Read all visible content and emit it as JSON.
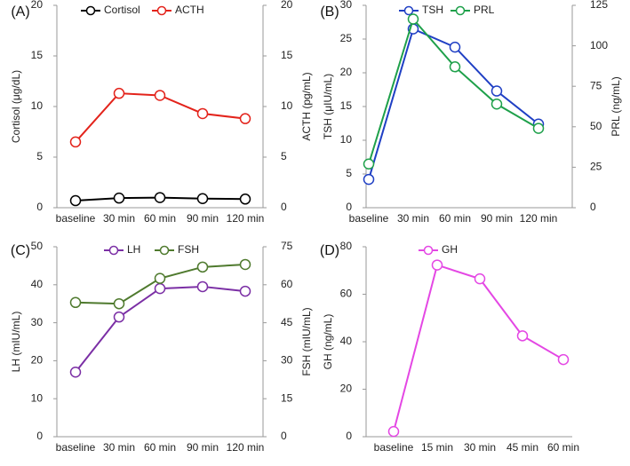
{
  "chart_data": [
    {
      "panel_label": "(A)",
      "type": "line",
      "categories": [
        "baseline",
        "30 min",
        "60 min",
        "90 min",
        "120 min"
      ],
      "left_axis": {
        "label": "Cortisol (μg/dL)",
        "ylim": [
          0,
          20
        ],
        "ticks": [
          0,
          5,
          10,
          15,
          20
        ]
      },
      "right_axis": {
        "label": "ACTH (pg/mL)",
        "ylim": [
          0,
          20
        ],
        "ticks": [
          0,
          5,
          10,
          15,
          20
        ]
      },
      "series": [
        {
          "name": "Cortisol",
          "axis": "left",
          "color": "#000000",
          "values": [
            0.7,
            0.95,
            1.0,
            0.9,
            0.85
          ]
        },
        {
          "name": "ACTH",
          "axis": "right",
          "color": "#e3231b",
          "values": [
            6.5,
            11.3,
            11.1,
            9.3,
            8.8
          ]
        }
      ]
    },
    {
      "panel_label": "(B)",
      "type": "line",
      "categories": [
        "baseline",
        "30 min",
        "60 min",
        "90 min",
        "120 min"
      ],
      "left_axis": {
        "label": "TSH (μIU/mL)",
        "ylim": [
          0,
          30
        ],
        "ticks": [
          0,
          5,
          10,
          15,
          20,
          25,
          30
        ]
      },
      "right_axis": {
        "label": "PRL (ng/mL)",
        "ylim": [
          0,
          125
        ],
        "ticks": [
          0,
          25,
          50,
          75,
          100,
          125
        ]
      },
      "series": [
        {
          "name": "TSH",
          "axis": "left",
          "color": "#1f3fc4",
          "values": [
            4.2,
            26.5,
            23.8,
            17.3,
            12.4
          ]
        },
        {
          "name": "PRL",
          "axis": "right",
          "color": "#1ea04a",
          "values": [
            27,
            116.5,
            87,
            64,
            49
          ]
        }
      ]
    },
    {
      "panel_label": "(C)",
      "type": "line",
      "categories": [
        "baseline",
        "30 min",
        "60 min",
        "90 min",
        "120 min"
      ],
      "left_axis": {
        "label": "LH (mIU/mL)",
        "ylim": [
          0,
          50
        ],
        "ticks": [
          0,
          10,
          20,
          30,
          40,
          50
        ]
      },
      "right_axis": {
        "label": "FSH (mIU/mL)",
        "ylim": [
          0,
          75
        ],
        "ticks": [
          0,
          15,
          30,
          45,
          60,
          75
        ]
      },
      "series": [
        {
          "name": "LH",
          "axis": "left",
          "color": "#7b2fa5",
          "values": [
            17.0,
            31.5,
            39.0,
            39.5,
            38.3
          ]
        },
        {
          "name": "FSH",
          "axis": "right",
          "color": "#4f7a2e",
          "values": [
            53.0,
            52.5,
            62.5,
            67.0,
            68.0
          ]
        }
      ]
    },
    {
      "panel_label": "(D)",
      "type": "line",
      "categories": [
        "baseline",
        "15 min",
        "30 min",
        "45 min",
        "60 min"
      ],
      "left_axis": {
        "label": "GH (ng/mL)",
        "ylim": [
          0,
          80
        ],
        "ticks": [
          0,
          20,
          40,
          60,
          80
        ]
      },
      "series": [
        {
          "name": "GH",
          "axis": "left",
          "color": "#e447e4",
          "values": [
            2.2,
            72.3,
            66.5,
            42.5,
            32.5
          ]
        }
      ]
    }
  ]
}
